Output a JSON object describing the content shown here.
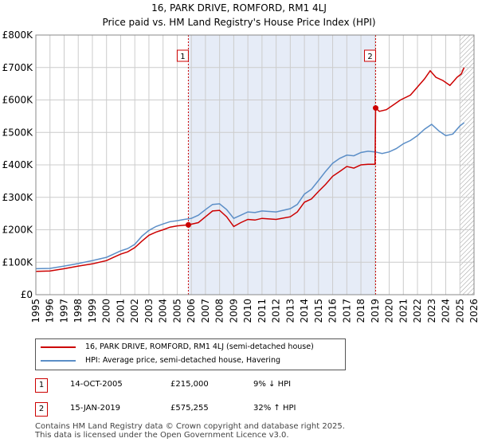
{
  "chart_data": {
    "type": "line",
    "title_line1": "16, PARK DRIVE, ROMFORD, RM1 4LJ",
    "title_line2": "Price paid vs. HM Land Registry's House Price Index (HPI)",
    "xlim": [
      1995,
      2026
    ],
    "ylim": [
      0,
      800000
    ],
    "y_ticks": [
      0,
      100000,
      200000,
      300000,
      400000,
      500000,
      600000,
      700000,
      800000
    ],
    "y_tick_labels": [
      "£0",
      "£100K",
      "£200K",
      "£300K",
      "£400K",
      "£500K",
      "£600K",
      "£700K",
      "£800K"
    ],
    "x_ticks": [
      1995,
      1996,
      1997,
      1998,
      1999,
      2000,
      2001,
      2002,
      2003,
      2004,
      2005,
      2006,
      2007,
      2008,
      2009,
      2010,
      2011,
      2012,
      2013,
      2014,
      2015,
      2016,
      2017,
      2018,
      2019,
      2020,
      2021,
      2022,
      2023,
      2024,
      2025,
      2026
    ],
    "x_tick_labels": [
      "1995",
      "1996",
      "1997",
      "1998",
      "1999",
      "2000",
      "2001",
      "2002",
      "2003",
      "2004",
      "2005",
      "2006",
      "2007",
      "2008",
      "2009",
      "2010",
      "2011",
      "2012",
      "2013",
      "2014",
      "2015",
      "2016",
      "2017",
      "2018",
      "2019",
      "2020",
      "2021",
      "2022",
      "2023",
      "2024",
      "2025",
      "2026"
    ],
    "grid": true,
    "shaded_span": [
      2005.79,
      2019.04
    ],
    "hatched_from": 2025.0,
    "series": [
      {
        "name": "16, PARK DRIVE, ROMFORD, RM1 4LJ (semi-detached house)",
        "color": "#cc0000",
        "x": [
          1995.0,
          1996.0,
          1997.0,
          1998.0,
          1999.0,
          2000.0,
          2000.5,
          2001.0,
          2001.5,
          2002.0,
          2002.5,
          2003.0,
          2003.5,
          2004.0,
          2004.5,
          2005.0,
          2005.5,
          2005.79,
          2006.5,
          2007.0,
          2007.5,
          2008.0,
          2008.5,
          2009.0,
          2009.5,
          2010.0,
          2010.5,
          2011.0,
          2012.0,
          2013.0,
          2013.5,
          2014.0,
          2014.5,
          2015.0,
          2015.5,
          2016.0,
          2016.5,
          2017.0,
          2017.5,
          2018.0,
          2018.5,
          2019.0,
          2019.04,
          2019.3,
          2019.8,
          2020.3,
          2020.8,
          2021.5,
          2022.0,
          2022.5,
          2022.9,
          2023.3,
          2023.8,
          2024.3,
          2024.8,
          2025.1,
          2025.3
        ],
        "y": [
          72000,
          73000,
          80000,
          88000,
          95000,
          105000,
          115000,
          125000,
          132000,
          145000,
          165000,
          183000,
          193000,
          200000,
          208000,
          212000,
          214000,
          215000,
          222000,
          240000,
          258000,
          260000,
          240000,
          210000,
          222000,
          232000,
          230000,
          235000,
          232000,
          240000,
          255000,
          285000,
          295000,
          318000,
          340000,
          365000,
          380000,
          395000,
          390000,
          400000,
          402000,
          402000,
          575255,
          565000,
          570000,
          585000,
          600000,
          615000,
          640000,
          665000,
          690000,
          670000,
          660000,
          645000,
          670000,
          680000,
          700000
        ]
      },
      {
        "name": "HPI: Average price, semi-detached house, Havering",
        "color": "#5b8ec7",
        "x": [
          1995.0,
          1996.0,
          1997.0,
          1998.0,
          1999.0,
          2000.0,
          2000.5,
          2001.0,
          2001.5,
          2002.0,
          2002.5,
          2003.0,
          2003.5,
          2004.0,
          2004.5,
          2005.0,
          2005.5,
          2006.0,
          2006.5,
          2007.0,
          2007.5,
          2008.0,
          2008.5,
          2009.0,
          2009.5,
          2010.0,
          2010.5,
          2011.0,
          2012.0,
          2013.0,
          2013.5,
          2014.0,
          2014.5,
          2015.0,
          2015.5,
          2016.0,
          2016.5,
          2017.0,
          2017.5,
          2018.0,
          2018.5,
          2019.0,
          2019.5,
          2020.0,
          2020.5,
          2021.0,
          2021.5,
          2022.0,
          2022.5,
          2023.0,
          2023.5,
          2024.0,
          2024.5,
          2025.0,
          2025.3
        ],
        "y": [
          80000,
          81000,
          88000,
          96000,
          105000,
          115000,
          125000,
          135000,
          142000,
          155000,
          180000,
          198000,
          210000,
          218000,
          225000,
          228000,
          232000,
          235000,
          245000,
          262000,
          278000,
          280000,
          262000,
          235000,
          245000,
          255000,
          253000,
          258000,
          255000,
          265000,
          278000,
          310000,
          325000,
          352000,
          380000,
          405000,
          420000,
          430000,
          428000,
          438000,
          442000,
          440000,
          435000,
          440000,
          450000,
          465000,
          475000,
          490000,
          510000,
          525000,
          505000,
          490000,
          495000,
          520000,
          530000
        ]
      }
    ],
    "markers": [
      {
        "label": "1",
        "x": 2005.79,
        "y": 215000
      },
      {
        "label": "2",
        "x": 2019.04,
        "y": 575255
      }
    ],
    "legend": [
      "16, PARK DRIVE, ROMFORD, RM1 4LJ (semi-detached house)",
      "HPI: Average price, semi-detached house, Havering"
    ]
  },
  "annotations": [
    {
      "num": "1",
      "date": "14-OCT-2005",
      "price": "£215,000",
      "hpi": "9% ↓ HPI"
    },
    {
      "num": "2",
      "date": "15-JAN-2019",
      "price": "£575,255",
      "hpi": "32% ↑ HPI"
    }
  ],
  "footer": {
    "line1": "Contains HM Land Registry data © Crown copyright and database right 2025.",
    "line2": "This data is licensed under the Open Government Licence v3.0."
  }
}
